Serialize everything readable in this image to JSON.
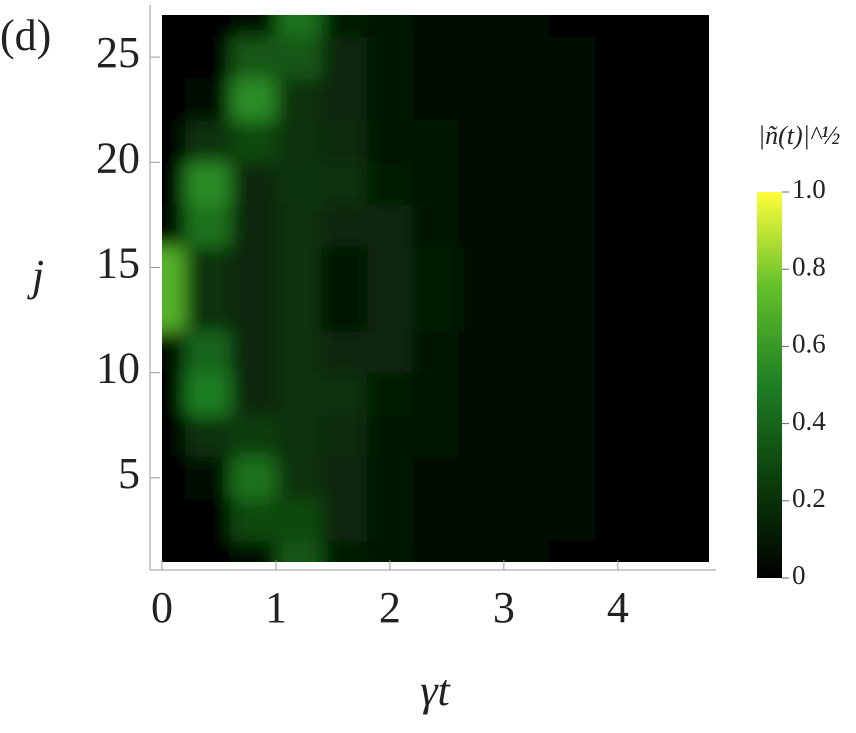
{
  "chart_data": {
    "type": "heatmap",
    "panel_label": "(d)",
    "x_label": "γt",
    "y_label": "j",
    "colorbar_label": "|ñ(t)|^½",
    "x": [
      0,
      0.4,
      0.8,
      1.2,
      1.6,
      2.0,
      2.4,
      2.8,
      3.2,
      3.6,
      4.0,
      4.4,
      4.8
    ],
    "y": [
      1,
      3,
      5,
      7,
      9,
      11,
      13,
      15,
      17,
      19,
      21,
      23,
      25,
      27
    ],
    "z": [
      [
        0,
        0,
        0.05,
        0.35,
        0.12,
        0.08,
        0.05,
        0.04,
        0.03,
        0.02,
        0.02,
        0.01,
        0.01
      ],
      [
        0,
        0,
        0.3,
        0.3,
        0.15,
        0.1,
        0.06,
        0.05,
        0.03,
        0.03,
        0.02,
        0.01,
        0.01
      ],
      [
        0,
        0.05,
        0.45,
        0.2,
        0.15,
        0.1,
        0.07,
        0.05,
        0.04,
        0.03,
        0.02,
        0.02,
        0.01
      ],
      [
        0,
        0.2,
        0.25,
        0.2,
        0.18,
        0.1,
        0.08,
        0.05,
        0.04,
        0.03,
        0.02,
        0.02,
        0.01
      ],
      [
        0,
        0.5,
        0.15,
        0.2,
        0.2,
        0.12,
        0.08,
        0.05,
        0.04,
        0.03,
        0.02,
        0.02,
        0.01
      ],
      [
        0.05,
        0.4,
        0.15,
        0.2,
        0.15,
        0.15,
        0.1,
        0.05,
        0.04,
        0.03,
        0.02,
        0.02,
        0.01
      ],
      [
        0.7,
        0.2,
        0.15,
        0.2,
        0.1,
        0.15,
        0.12,
        0.06,
        0.04,
        0.03,
        0.02,
        0.02,
        0.01
      ],
      [
        0.7,
        0.2,
        0.15,
        0.2,
        0.1,
        0.15,
        0.12,
        0.06,
        0.04,
        0.03,
        0.02,
        0.02,
        0.01
      ],
      [
        0.05,
        0.45,
        0.15,
        0.2,
        0.15,
        0.15,
        0.1,
        0.05,
        0.04,
        0.03,
        0.02,
        0.02,
        0.01
      ],
      [
        0,
        0.55,
        0.15,
        0.22,
        0.2,
        0.12,
        0.08,
        0.05,
        0.04,
        0.03,
        0.02,
        0.02,
        0.01
      ],
      [
        0,
        0.2,
        0.3,
        0.2,
        0.18,
        0.1,
        0.08,
        0.05,
        0.04,
        0.03,
        0.02,
        0.02,
        0.01
      ],
      [
        0,
        0.05,
        0.55,
        0.2,
        0.15,
        0.1,
        0.07,
        0.05,
        0.04,
        0.03,
        0.02,
        0.02,
        0.01
      ],
      [
        0,
        0,
        0.35,
        0.35,
        0.15,
        0.1,
        0.06,
        0.05,
        0.03,
        0.03,
        0.02,
        0.01,
        0.01
      ],
      [
        0,
        0,
        0.05,
        0.45,
        0.12,
        0.08,
        0.05,
        0.04,
        0.03,
        0.02,
        0.02,
        0.01,
        0.01
      ]
    ],
    "xlim": [
      0,
      4.8
    ],
    "xticks": [
      0,
      1,
      2,
      3,
      4
    ],
    "ylim": [
      1,
      27
    ],
    "yticks": [
      5,
      10,
      15,
      20,
      25
    ],
    "zlim": [
      0,
      1
    ],
    "zticks": [
      0,
      0.2,
      0.4,
      0.6,
      0.8,
      {
        "value": 1,
        "label": "1.0"
      }
    ],
    "colormap": [
      "#000000",
      "#0b3d0b",
      "#1f7f24",
      "#61bf2a",
      "#ffff3a"
    ]
  }
}
